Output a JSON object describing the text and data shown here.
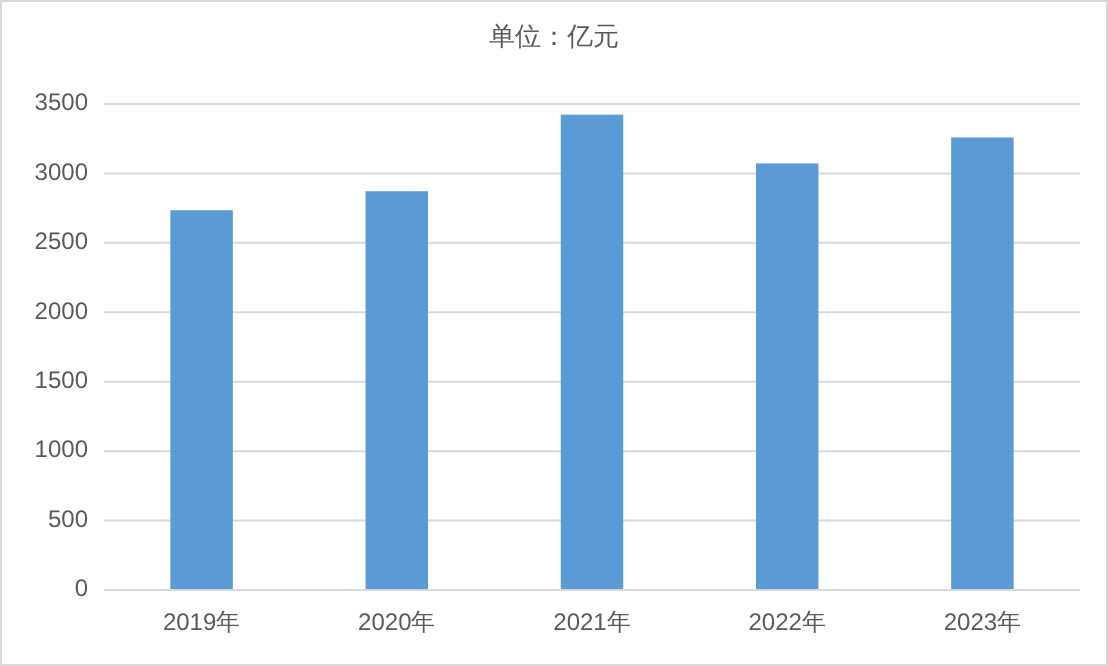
{
  "chart_data": {
    "type": "bar",
    "title": "单位：亿元",
    "categories": [
      "2019年",
      "2020年",
      "2021年",
      "2022年",
      "2023年"
    ],
    "values": [
      2735,
      2872,
      3423,
      3072,
      3259
    ],
    "color": "#5b9bd5",
    "ylim": [
      0,
      3500
    ],
    "yticks": [
      0,
      500,
      1000,
      1500,
      2000,
      2500,
      3000,
      3500
    ],
    "grid": "y"
  }
}
